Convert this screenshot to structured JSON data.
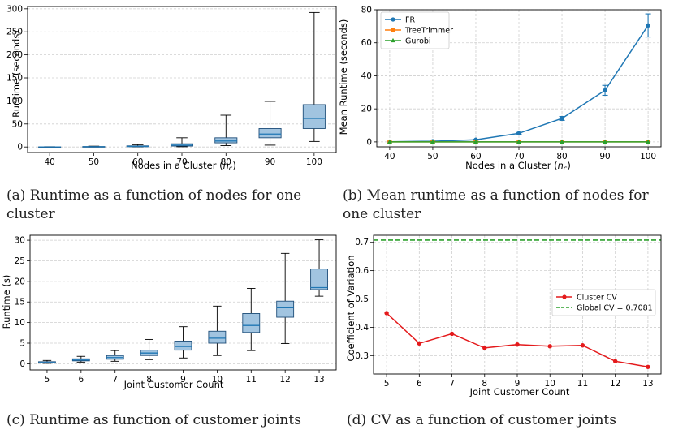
{
  "captions": {
    "a": "(a) Runtime as a function of nodes for one cluster",
    "b": "(b) Mean runtime as a function of nodes for one cluster",
    "c": "(c) Runtime as function of customer joints",
    "d": "(d) CV as a function of customer joints"
  },
  "chart_data": [
    {
      "id": "a",
      "type": "box",
      "xlabel": "Nodes in a Cluster (n_c)",
      "ylabel": "Runtime (seconds)",
      "categories": [
        "40",
        "50",
        "60",
        "70",
        "80",
        "90",
        "100"
      ],
      "ylim": [
        -12,
        305
      ],
      "yticks": [
        0,
        50,
        100,
        150,
        200,
        250,
        300
      ],
      "grid": "y",
      "color": "#a1c4e0",
      "boxes": [
        {
          "min": 0,
          "q1": 0,
          "median": 0.1,
          "q3": 0.3,
          "max": 0.6
        },
        {
          "min": 0.1,
          "q1": 0.3,
          "median": 0.6,
          "q3": 1.0,
          "max": 1.8
        },
        {
          "min": 0.2,
          "q1": 0.6,
          "median": 1.3,
          "q3": 2.5,
          "max": 5
        },
        {
          "min": 0.5,
          "q1": 2,
          "median": 4,
          "q3": 7,
          "max": 20
        },
        {
          "min": 3,
          "q1": 9,
          "median": 13,
          "q3": 20,
          "max": 69
        },
        {
          "min": 4,
          "q1": 20,
          "median": 28,
          "q3": 40,
          "max": 99
        },
        {
          "min": 12,
          "q1": 40,
          "median": 62,
          "q3": 92,
          "max": 292
        }
      ]
    },
    {
      "id": "b",
      "type": "line",
      "xlabel": "Nodes in a Cluster (n_c)",
      "ylabel": "Mean Runtime (seconds)",
      "x": [
        40,
        50,
        60,
        70,
        80,
        90,
        100
      ],
      "xlim": [
        37,
        103
      ],
      "ylim": [
        -3,
        80
      ],
      "yticks": [
        0,
        20,
        40,
        60,
        80
      ],
      "grid": "both",
      "legend": "top-left",
      "series": [
        {
          "name": "FR",
          "color": "#1f77b4",
          "marker": "circle",
          "values": [
            0.1,
            0.4,
            1.3,
            5.2,
            14.2,
            31.2,
            70.5
          ],
          "errors": [
            0.05,
            0.1,
            0.3,
            0.5,
            1.2,
            3.0,
            7.0
          ]
        },
        {
          "name": "TreeTrimmer",
          "color": "#ff7f0e",
          "marker": "square",
          "values": [
            0,
            0,
            0,
            0,
            0,
            0,
            0
          ]
        },
        {
          "name": "Gurobi",
          "color": "#2ca02c",
          "marker": "triangle",
          "values": [
            0,
            0,
            0,
            0,
            0,
            0,
            0
          ]
        }
      ]
    },
    {
      "id": "c",
      "type": "box",
      "xlabel": "Joint Customer Count",
      "ylabel": "Runtime (s)",
      "categories": [
        "5",
        "6",
        "7",
        "8",
        "9",
        "10",
        "11",
        "12",
        "13"
      ],
      "ylim": [
        -1.5,
        31.2
      ],
      "yticks": [
        0,
        5,
        10,
        15,
        20,
        25,
        30
      ],
      "grid": "y",
      "color": "#a1c4e0",
      "boxes": [
        {
          "min": 0.1,
          "q1": 0.2,
          "median": 0.3,
          "q3": 0.5,
          "max": 0.8
        },
        {
          "min": 0.4,
          "q1": 0.7,
          "median": 0.9,
          "q3": 1.2,
          "max": 1.8
        },
        {
          "min": 0.6,
          "q1": 1.1,
          "median": 1.5,
          "q3": 2.0,
          "max": 3.2
        },
        {
          "min": 1.0,
          "q1": 2.0,
          "median": 2.6,
          "q3": 3.3,
          "max": 5.9
        },
        {
          "min": 1.4,
          "q1": 3.3,
          "median": 4.2,
          "q3": 5.5,
          "max": 9.0
        },
        {
          "min": 2.0,
          "q1": 5.0,
          "median": 6.2,
          "q3": 7.9,
          "max": 14.0
        },
        {
          "min": 3.2,
          "q1": 7.6,
          "median": 9.3,
          "q3": 12.2,
          "max": 18.3
        },
        {
          "min": 4.9,
          "q1": 11.3,
          "median": 13.6,
          "q3": 15.2,
          "max": 26.8
        },
        {
          "min": 16.4,
          "q1": 18.0,
          "median": 18.5,
          "q3": 23.0,
          "max": 30.1
        }
      ]
    },
    {
      "id": "d",
      "type": "line",
      "xlabel": "Joint Customer Count",
      "ylabel": "Coefficient of Variation",
      "x": [
        5,
        6,
        7,
        8,
        9,
        10,
        11,
        12,
        13
      ],
      "xlim": [
        4.6,
        13.4
      ],
      "ylim": [
        0.235,
        0.725
      ],
      "yticks": [
        0.3,
        0.4,
        0.5,
        0.6,
        0.7
      ],
      "grid": "both",
      "legend": "center-right",
      "series": [
        {
          "name": "Cluster CV",
          "color": "#e41a1c",
          "marker": "circle",
          "values": [
            0.45,
            0.343,
            0.377,
            0.327,
            0.339,
            0.333,
            0.336,
            0.28,
            0.26
          ]
        }
      ],
      "hline": {
        "name": "Global CV = 0.7081",
        "value": 0.7081,
        "color": "#2ca02c",
        "style": "dashed"
      }
    }
  ]
}
